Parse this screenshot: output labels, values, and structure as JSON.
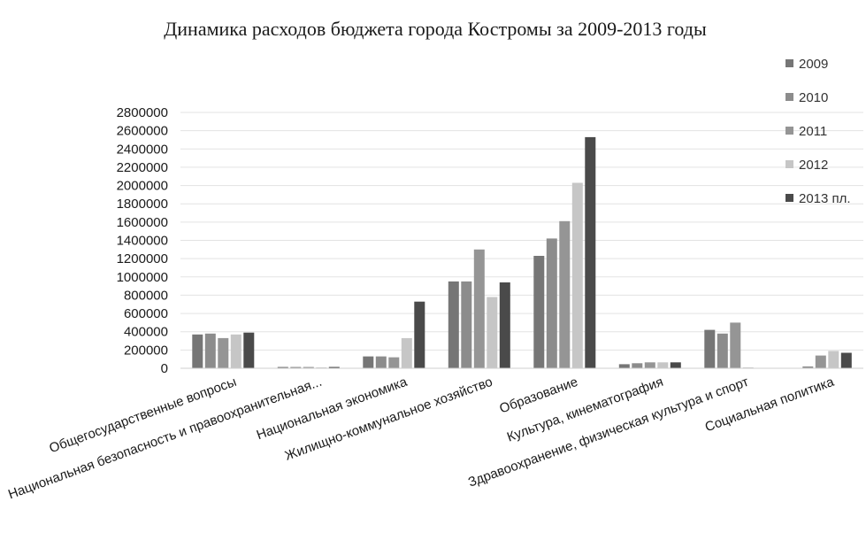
{
  "chart_data": {
    "type": "bar",
    "title": "Динамика расходов бюджета города Костромы за 2009-2013  годы",
    "xlabel": "",
    "ylabel": "",
    "ylim": [
      0,
      2800000
    ],
    "yticks": [
      0,
      200000,
      400000,
      600000,
      800000,
      1000000,
      1200000,
      1400000,
      1600000,
      1800000,
      2000000,
      2200000,
      2400000,
      2600000,
      2800000
    ],
    "grid": true,
    "legend_position": "right",
    "categories": [
      "Общегосударственные вопросы",
      "Национальная безопасность и правоохранительная...",
      "Национальная экономика",
      "Жилищно-коммунальное хозяйство",
      "Образование",
      "Культура, кинематография",
      "Здравоохранение, физическая культура и спорт",
      "Социальная политика"
    ],
    "series": [
      {
        "name": "2009",
        "color": "#767676",
        "values": [
          370000,
          15000,
          130000,
          950000,
          1230000,
          45000,
          420000,
          5000
        ]
      },
      {
        "name": "2010",
        "color": "#8c8c8c",
        "values": [
          380000,
          15000,
          130000,
          950000,
          1420000,
          55000,
          380000,
          20000
        ]
      },
      {
        "name": "2011",
        "color": "#959595",
        "values": [
          330000,
          15000,
          120000,
          1300000,
          1610000,
          65000,
          500000,
          140000
        ]
      },
      {
        "name": "2012",
        "color": "#c6c6c6",
        "values": [
          370000,
          10000,
          330000,
          780000,
          2030000,
          65000,
          10000,
          190000
        ]
      },
      {
        "name": "2013 пл.",
        "color": "#4a4a4a",
        "values": [
          390000,
          15000,
          730000,
          940000,
          2530000,
          65000,
          0,
          170000
        ]
      }
    ]
  }
}
